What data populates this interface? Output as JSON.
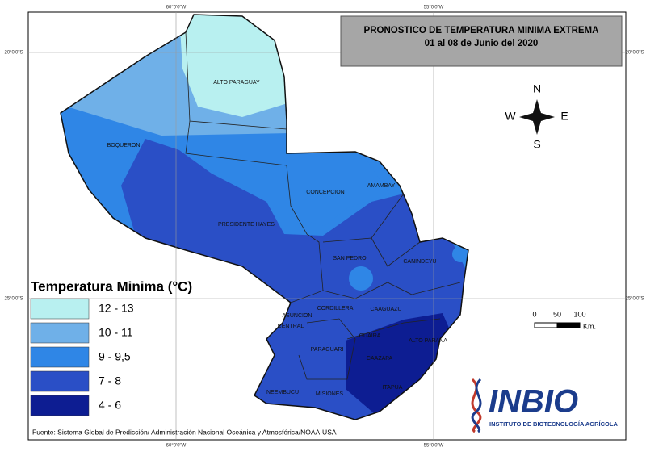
{
  "title": {
    "line1": "PRONOSTICO DE TEMPERATURA MINIMA EXTREMA",
    "line2": "01 al 08 de Junio del 2020"
  },
  "grid_labels": {
    "top": [
      "60°0'0\"W",
      "55°0'0\"W"
    ],
    "bottom": [
      "60°0'0\"W",
      "55°0'0\"W"
    ],
    "left": [
      "20°0'0\"S",
      "25°0'0\"S"
    ],
    "right": [
      "20°0'0\"S",
      "25°0'0\"S"
    ]
  },
  "compass": {
    "n": "N",
    "e": "E",
    "s": "S",
    "w": "W"
  },
  "regions": [
    "ALTO PARAGUAY",
    "BOQUERON",
    "PRESIDENTE HAYES",
    "CONCEPCION",
    "AMAMBAY",
    "SAN PEDRO",
    "CANINDEYU",
    "CORDILLERA",
    "CAAGUAZU",
    "ASUNCION",
    "CENTRAL",
    "PARAGUARI",
    "GUAIRA",
    "ALTO PARANA",
    "CAAZAPA",
    "ITAPUA",
    "NEEMBUCU",
    "MISIONES"
  ],
  "legend": {
    "title": "Temperatura Minima (°C)",
    "items": [
      {
        "label": "12 - 13",
        "color": "#b8f0f0"
      },
      {
        "label": "10 - 11",
        "color": "#6fb0e8"
      },
      {
        "label": "9 - 9,5",
        "color": "#2f86e6"
      },
      {
        "label": "7 - 8",
        "color": "#2a4fc6"
      },
      {
        "label": "4 - 6",
        "color": "#0d1d92"
      }
    ]
  },
  "scale": {
    "ticks": [
      0,
      50,
      100
    ],
    "unit": "Km."
  },
  "source": "Fuente: Sistema Global de Predicción/ Administración Nacional Oceánica y Atmosférica/NOAA-USA",
  "logo": {
    "name": "INBIO",
    "subtitle": "INSTITUTO DE BIOTECNOLOGÍA AGRÍCOLA"
  }
}
